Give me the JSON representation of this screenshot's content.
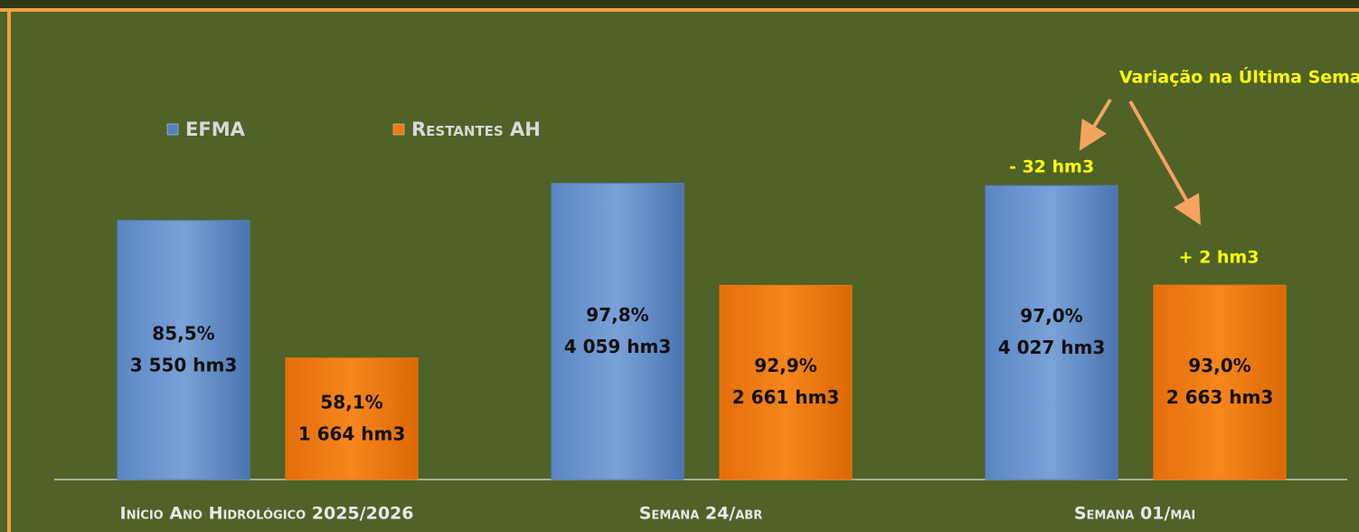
{
  "chart_data": {
    "type": "bar",
    "categories": [
      "Início Ano Hidrológico 2025/2026",
      "Semana 24/abr",
      "Semana 01/mai"
    ],
    "series": [
      {
        "name": "EFMA",
        "color": "#4f81bd",
        "values": [
          3550,
          4059,
          4027
        ],
        "value_labels": [
          "3 550 hm3",
          "4 059 hm3",
          "4 027 hm3"
        ],
        "percent_labels": [
          "85,5%",
          "97,8%",
          "97,0%"
        ]
      },
      {
        "name": "Restantes AH",
        "color": "#f07810",
        "values": [
          1664,
          2661,
          2663
        ],
        "value_labels": [
          "1 664 hm3",
          "2 661 hm3",
          "2 663 hm3"
        ],
        "percent_labels": [
          "58,1%",
          "92,9%",
          "93,0%"
        ]
      }
    ],
    "ylim": [
      0,
      4500
    ],
    "annotations": [
      "Variação na Última Semana",
      "- 32 hm3",
      "+ 2 hm3"
    ]
  }
}
